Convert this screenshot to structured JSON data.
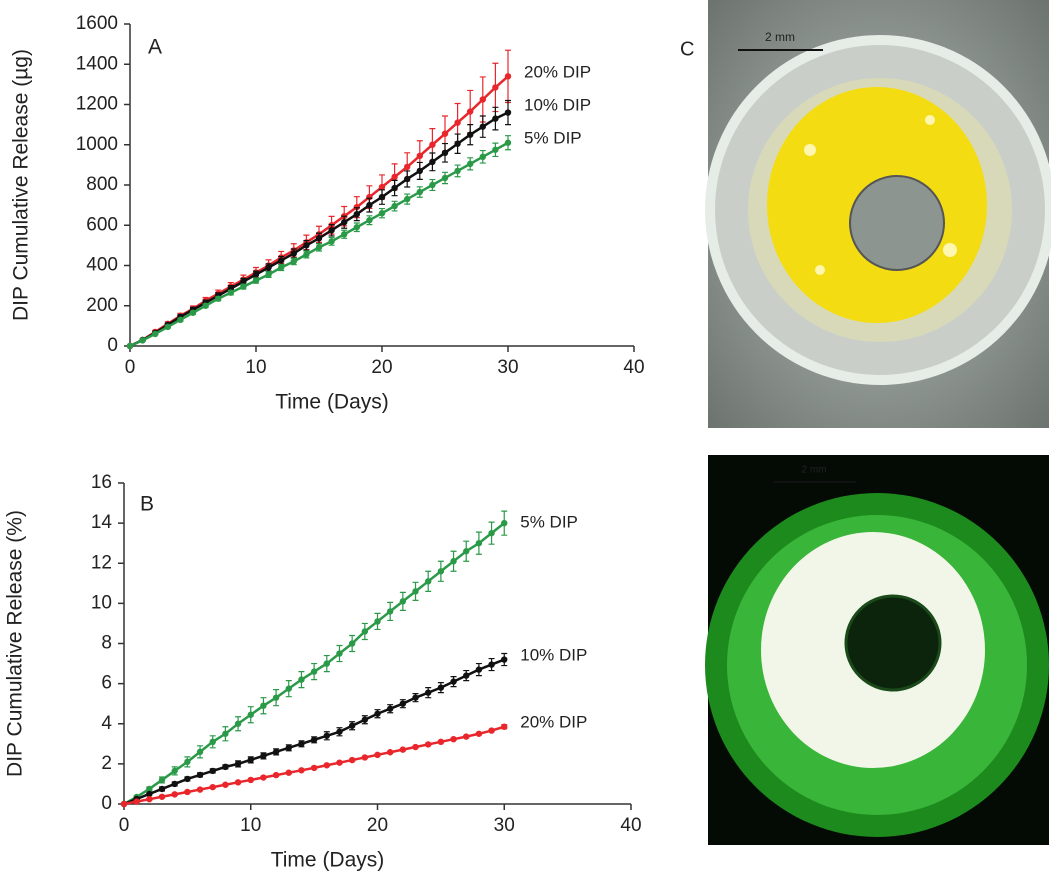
{
  "chart_data": [
    {
      "type": "line",
      "panel": "A",
      "x_label": "Time (Days)",
      "y_label": "DIP Cumulative Release (µg)",
      "x": [
        0,
        1,
        2,
        3,
        4,
        5,
        6,
        7,
        8,
        9,
        10,
        11,
        12,
        13,
        14,
        15,
        16,
        17,
        18,
        19,
        20,
        21,
        22,
        23,
        24,
        25,
        26,
        27,
        28,
        29,
        30
      ],
      "xlim": [
        0,
        40
      ],
      "xticks": [
        0,
        10,
        20,
        30,
        40
      ],
      "ylim": [
        0,
        1600
      ],
      "yticks": [
        0,
        200,
        400,
        600,
        800,
        1000,
        1200,
        1400,
        1600
      ],
      "series": [
        {
          "name": "20% DIP",
          "color": "#e8262b",
          "values": [
            0,
            30,
            70,
            110,
            150,
            185,
            225,
            260,
            295,
            330,
            365,
            400,
            440,
            475,
            515,
            555,
            600,
            645,
            690,
            740,
            790,
            840,
            890,
            945,
            1000,
            1055,
            1110,
            1165,
            1225,
            1285,
            1340
          ],
          "errors": [
            0,
            5,
            8,
            10,
            12,
            14,
            16,
            18,
            20,
            22,
            25,
            28,
            30,
            33,
            36,
            40,
            44,
            48,
            52,
            56,
            60,
            65,
            70,
            75,
            80,
            88,
            95,
            105,
            112,
            120,
            130
          ]
        },
        {
          "name": "10% DIP",
          "color": "#111111",
          "values": [
            0,
            30,
            65,
            105,
            145,
            180,
            215,
            250,
            285,
            320,
            355,
            390,
            425,
            460,
            500,
            535,
            575,
            615,
            655,
            700,
            740,
            785,
            830,
            870,
            915,
            960,
            1005,
            1050,
            1090,
            1130,
            1160
          ],
          "errors": [
            0,
            4,
            6,
            8,
            10,
            12,
            13,
            14,
            15,
            16,
            17,
            18,
            20,
            22,
            24,
            26,
            28,
            30,
            32,
            34,
            36,
            38,
            40,
            42,
            44,
            46,
            48,
            50,
            53,
            56,
            60
          ]
        },
        {
          "name": "5% DIP",
          "color": "#2a9a48",
          "values": [
            0,
            28,
            60,
            95,
            130,
            165,
            200,
            235,
            265,
            295,
            325,
            355,
            390,
            420,
            455,
            490,
            520,
            555,
            590,
            625,
            660,
            695,
            730,
            765,
            800,
            835,
            870,
            905,
            940,
            975,
            1010
          ],
          "errors": [
            0,
            3,
            5,
            6,
            7,
            8,
            9,
            10,
            11,
            12,
            13,
            14,
            15,
            16,
            17,
            18,
            19,
            20,
            21,
            22,
            23,
            24,
            25,
            26,
            27,
            28,
            29,
            30,
            31,
            33,
            35
          ]
        }
      ]
    },
    {
      "type": "line",
      "panel": "B",
      "x_label": "Time (Days)",
      "y_label": "DIP Cumulative Release (%)",
      "x": [
        0,
        1,
        2,
        3,
        4,
        5,
        6,
        7,
        8,
        9,
        10,
        11,
        12,
        13,
        14,
        15,
        16,
        17,
        18,
        19,
        20,
        21,
        22,
        23,
        24,
        25,
        26,
        27,
        28,
        29,
        30
      ],
      "xlim": [
        0,
        40
      ],
      "xticks": [
        0,
        10,
        20,
        30,
        40
      ],
      "ylim": [
        0,
        16
      ],
      "yticks": [
        0,
        2,
        4,
        6,
        8,
        10,
        12,
        14,
        16
      ],
      "series": [
        {
          "name": "5% DIP",
          "color": "#2a9a48",
          "values": [
            0,
            0.35,
            0.75,
            1.2,
            1.65,
            2.1,
            2.6,
            3.1,
            3.5,
            4.0,
            4.45,
            4.9,
            5.3,
            5.75,
            6.2,
            6.6,
            7.0,
            7.5,
            8.0,
            8.6,
            9.1,
            9.6,
            10.1,
            10.6,
            11.1,
            11.6,
            12.1,
            12.6,
            13.0,
            13.5,
            14.0
          ],
          "errors": [
            0,
            0.05,
            0.1,
            0.15,
            0.2,
            0.25,
            0.3,
            0.3,
            0.35,
            0.35,
            0.4,
            0.4,
            0.4,
            0.4,
            0.4,
            0.4,
            0.4,
            0.4,
            0.4,
            0.4,
            0.4,
            0.45,
            0.45,
            0.45,
            0.5,
            0.5,
            0.5,
            0.5,
            0.55,
            0.55,
            0.6
          ]
        },
        {
          "name": "10% DIP",
          "color": "#111111",
          "values": [
            0,
            0.25,
            0.5,
            0.75,
            1.0,
            1.25,
            1.45,
            1.65,
            1.85,
            2.0,
            2.2,
            2.4,
            2.6,
            2.8,
            3.0,
            3.2,
            3.4,
            3.6,
            3.9,
            4.2,
            4.5,
            4.75,
            5.0,
            5.3,
            5.55,
            5.8,
            6.1,
            6.4,
            6.7,
            6.95,
            7.2
          ],
          "errors": [
            0,
            0.05,
            0.05,
            0.1,
            0.1,
            0.1,
            0.1,
            0.1,
            0.1,
            0.15,
            0.15,
            0.15,
            0.15,
            0.15,
            0.15,
            0.15,
            0.2,
            0.2,
            0.2,
            0.2,
            0.2,
            0.2,
            0.2,
            0.2,
            0.25,
            0.25,
            0.25,
            0.25,
            0.3,
            0.3,
            0.3
          ]
        },
        {
          "name": "20% DIP",
          "color": "#e8262b",
          "values": [
            0,
            0.12,
            0.24,
            0.36,
            0.48,
            0.6,
            0.72,
            0.84,
            0.96,
            1.08,
            1.2,
            1.32,
            1.44,
            1.56,
            1.68,
            1.8,
            1.93,
            2.06,
            2.19,
            2.32,
            2.45,
            2.58,
            2.71,
            2.84,
            2.97,
            3.1,
            3.23,
            3.36,
            3.5,
            3.66,
            3.85
          ],
          "errors": [
            0,
            0.05,
            0.05,
            0.05,
            0.05,
            0.05,
            0.05,
            0.05,
            0.05,
            0.05,
            0.05,
            0.05,
            0.05,
            0.05,
            0.05,
            0.05,
            0.05,
            0.05,
            0.05,
            0.05,
            0.05,
            0.05,
            0.05,
            0.05,
            0.05,
            0.05,
            0.05,
            0.05,
            0.05,
            0.05,
            0.1
          ]
        }
      ]
    }
  ],
  "photo_panel": "C",
  "photos": [
    {
      "scale_bar": "2 mm"
    },
    {
      "scale_bar": "2 mm"
    }
  ]
}
